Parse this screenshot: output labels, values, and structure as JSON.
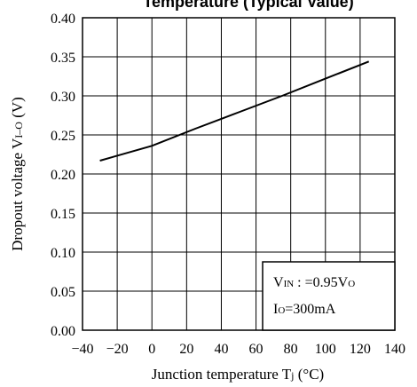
{
  "chart_data": {
    "type": "line",
    "title": "Temperature (Typical Value)",
    "xlabel": "Junction temperature Tj (°C)",
    "xlabel_main": "Junction temperature T",
    "xlabel_sub": "j",
    "xlabel_unit": " (°C)",
    "ylabel_main": "Dropout voltage V",
    "ylabel_sub": "I–O",
    "ylabel_unit": " (V)",
    "xlim": [
      -40,
      140
    ],
    "ylim": [
      0.0,
      0.4
    ],
    "x_ticks": [
      "−40",
      "−20",
      "0",
      "20",
      "40",
      "60",
      "80",
      "100",
      "120",
      "140"
    ],
    "y_ticks": [
      "0.00",
      "0.05",
      "0.10",
      "0.15",
      "0.20",
      "0.25",
      "0.30",
      "0.35",
      "0.40"
    ],
    "grid": true,
    "series": [
      {
        "x": [
          -30,
          0,
          25,
          50,
          75,
          100,
          125
        ],
        "y": [
          0.217,
          0.236,
          0.258,
          0.279,
          0.3,
          0.322,
          0.344
        ]
      }
    ],
    "annotation": {
      "line1_main": "V",
      "line1_sub": "IN",
      "line1_mid": " : =0.95V",
      "line1_sub2": "O",
      "line2_main": "I",
      "line2_sub": "O",
      "line2_rest": "=300mA"
    },
    "colors": {
      "line": "#000000",
      "grid": "#000000"
    }
  }
}
